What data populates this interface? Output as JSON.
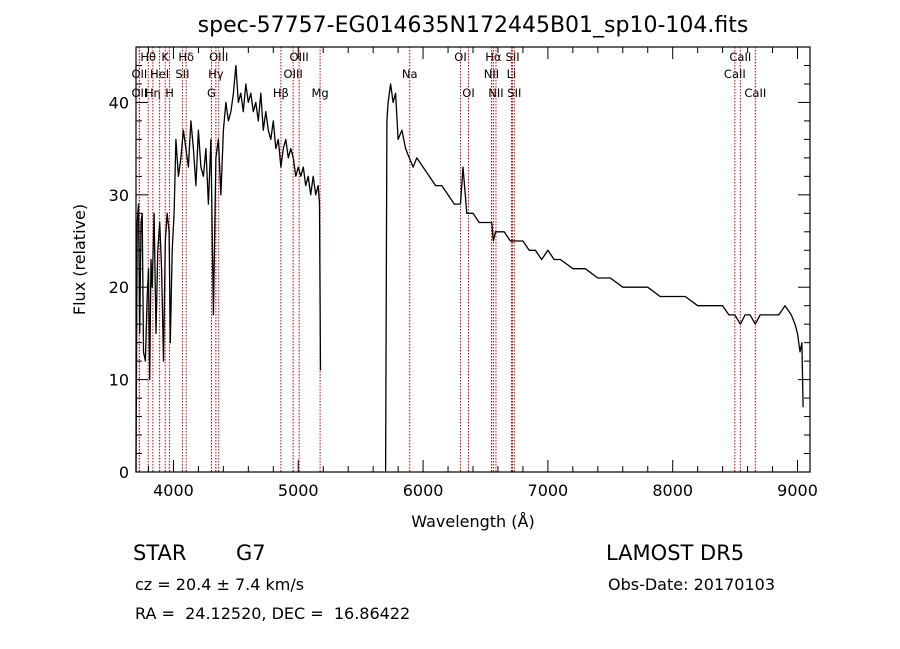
{
  "chart_data": {
    "type": "line",
    "title": "spec-57757-EG014635N172445B01_sp10-104.fits",
    "xlabel": "Wavelength (Å)",
    "ylabel": "Flux (relative)",
    "xlim": [
      3700,
      9100
    ],
    "ylim": [
      0,
      46
    ],
    "x_ticks": [
      4000,
      5000,
      6000,
      7000,
      8000,
      9000
    ],
    "y_ticks": [
      0,
      10,
      20,
      30,
      40
    ],
    "grid": false,
    "line_color": "#000000",
    "marker_color": "#cc0000",
    "spectrum_segments": [
      {
        "x": [
          3700,
          3710,
          3720,
          3730,
          3740,
          3750,
          3760,
          3775,
          3790,
          3800,
          3810,
          3820,
          3830,
          3845,
          3860,
          3875,
          3890,
          3905,
          3920,
          3935,
          3950,
          3965,
          3975,
          3990,
          4005,
          4020,
          4040,
          4060,
          4080,
          4100,
          4120,
          4140,
          4160,
          4180,
          4200,
          4220,
          4240,
          4260,
          4280,
          4300,
          4320,
          4340,
          4360,
          4380,
          4400,
          4420,
          4440,
          4460,
          4480,
          4500,
          4520,
          4540,
          4560,
          4580,
          4600,
          4620,
          4640,
          4660,
          4680,
          4700,
          4720,
          4740,
          4760,
          4780,
          4800,
          4820,
          4840,
          4861,
          4880,
          4900,
          4920,
          4940,
          4960,
          4980,
          5000,
          5020,
          5040,
          5060,
          5080,
          5100,
          5120,
          5140,
          5160,
          5170,
          5178
        ],
        "y": [
          0,
          27,
          29,
          15,
          27,
          28,
          13,
          12,
          19,
          22,
          10,
          23,
          20,
          28,
          15,
          24,
          27,
          22,
          12,
          25,
          28,
          26,
          14,
          24,
          28,
          36,
          32,
          34,
          37,
          35,
          33,
          38,
          35,
          31,
          37,
          33,
          32,
          35,
          29,
          36,
          17,
          34,
          36,
          30,
          37,
          40,
          38,
          39,
          41,
          44,
          40,
          41,
          39,
          42,
          40,
          41,
          39,
          40,
          38,
          41,
          37,
          39,
          37,
          36,
          38,
          35,
          36,
          33,
          35,
          36,
          34,
          35,
          34,
          32,
          33,
          32,
          33,
          31,
          32,
          30,
          32,
          30,
          31,
          29,
          11
        ]
      },
      {
        "x": [
          5700,
          5710,
          5720,
          5740,
          5760,
          5780,
          5800,
          5830,
          5860,
          5890,
          5920,
          5950,
          6000,
          6050,
          6100,
          6150,
          6200,
          6250,
          6300,
          6320,
          6350,
          6400,
          6450,
          6500,
          6550,
          6563,
          6580,
          6600,
          6650,
          6700,
          6750,
          6800,
          6850,
          6900,
          6950,
          7000,
          7050,
          7100,
          7200,
          7300,
          7400,
          7500,
          7600,
          7700,
          7800,
          7900,
          8000,
          8100,
          8200,
          8300,
          8400,
          8450,
          8498,
          8542,
          8580,
          8620,
          8662,
          8700,
          8750,
          8800,
          8850,
          8900,
          8950,
          8980,
          9000,
          9020,
          9035,
          9045
        ],
        "y": [
          0,
          38,
          40,
          42,
          40,
          41,
          36,
          37,
          35,
          34,
          33,
          34,
          33,
          32,
          31,
          31,
          30,
          29,
          29,
          33,
          28,
          28,
          27,
          27,
          27,
          25,
          26,
          26,
          26,
          25,
          25,
          25,
          24,
          24,
          23,
          24,
          23,
          23,
          22,
          22,
          21,
          21,
          20,
          20,
          20,
          19,
          19,
          19,
          18,
          18,
          18,
          17,
          17,
          16,
          17,
          17,
          16,
          17,
          17,
          17,
          17,
          18,
          17,
          16,
          15,
          13,
          14,
          7
        ]
      }
    ],
    "spectral_lines": [
      {
        "label": "Hθ",
        "x": 3798,
        "row": 1
      },
      {
        "label": "OII",
        "x": 3727,
        "row": 2
      },
      {
        "label": "OII",
        "x": 3727,
        "row": 3
      },
      {
        "label": "Hη",
        "x": 3835,
        "row": 3
      },
      {
        "label": "HeI",
        "x": 3889,
        "row": 2
      },
      {
        "label": "K",
        "x": 3934,
        "row": 1
      },
      {
        "label": "H",
        "x": 3969,
        "row": 3
      },
      {
        "label": "SII",
        "x": 4072,
        "row": 2
      },
      {
        "label": "Hδ",
        "x": 4102,
        "row": 1
      },
      {
        "label": "Hγ",
        "x": 4340,
        "row": 2
      },
      {
        "label": "G",
        "x": 4305,
        "row": 3
      },
      {
        "label": "OIII",
        "x": 4363,
        "row": 1
      },
      {
        "label": "Hβ",
        "x": 4861,
        "row": 3
      },
      {
        "label": "OIII",
        "x": 4959,
        "row": 2
      },
      {
        "label": "OIII",
        "x": 5007,
        "row": 1
      },
      {
        "label": "Mg",
        "x": 5175,
        "row": 3
      },
      {
        "label": "Na",
        "x": 5893,
        "row": 2
      },
      {
        "label": "OI",
        "x": 6300,
        "row": 1
      },
      {
        "label": "OI",
        "x": 6364,
        "row": 3
      },
      {
        "label": "Hα",
        "x": 6563,
        "row": 1
      },
      {
        "label": "NII",
        "x": 6548,
        "row": 2
      },
      {
        "label": "NII",
        "x": 6584,
        "row": 3
      },
      {
        "label": "SII",
        "x": 6717,
        "row": 1
      },
      {
        "label": "Li",
        "x": 6708,
        "row": 2
      },
      {
        "label": "SII",
        "x": 6731,
        "row": 3
      },
      {
        "label": "CaII",
        "x": 8542,
        "row": 1
      },
      {
        "label": "CaII",
        "x": 8498,
        "row": 2
      },
      {
        "label": "CaII",
        "x": 8662,
        "row": 3
      }
    ]
  },
  "info": {
    "object_class": "STAR",
    "subclass": "G7",
    "survey": "LAMOST DR5",
    "redshift_line": "cz = 20.4 ± 7.4 km/s",
    "obs_date": "Obs-Date: 20170103",
    "coords": "RA =  24.12520, DEC =  16.86422"
  }
}
